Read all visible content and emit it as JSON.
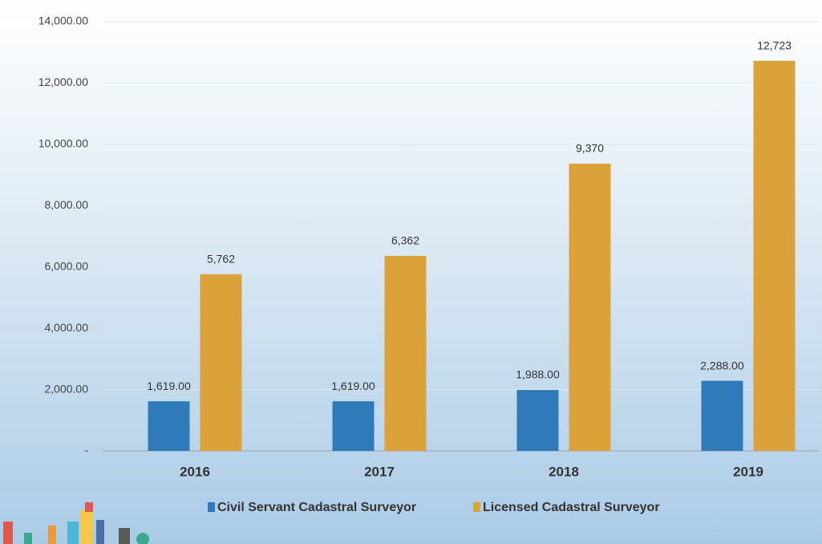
{
  "chart_data": {
    "type": "bar",
    "categories": [
      "2016",
      "2017",
      "2018",
      "2019"
    ],
    "series": [
      {
        "name": "Civil Servant Cadastral Surveyor",
        "color": "#2f7bb9",
        "values": [
          1619,
          1619,
          1988,
          2288
        ],
        "value_labels": [
          "1,619.00",
          "1,619.00",
          "1,988.00",
          "2,288.00"
        ]
      },
      {
        "name": "Licensed Cadastral Surveyor",
        "color": "#dca23a",
        "values": [
          5762,
          6362,
          9370,
          12723
        ],
        "value_labels": [
          "5,762",
          "6,362",
          "9,370",
          "12,723"
        ]
      }
    ],
    "ylim": [
      0,
      14000
    ],
    "yticks": [
      {
        "value": 0,
        "label": "-"
      },
      {
        "value": 2000,
        "label": "2,000.00"
      },
      {
        "value": 4000,
        "label": "4,000.00"
      },
      {
        "value": 6000,
        "label": "6,000.00"
      },
      {
        "value": 8000,
        "label": "8,000.00"
      },
      {
        "value": 10000,
        "label": "10,000.00"
      },
      {
        "value": 12000,
        "label": "12,000.00"
      },
      {
        "value": 14000,
        "label": "14,000.00"
      }
    ],
    "grid": true,
    "legend": "bottom"
  }
}
